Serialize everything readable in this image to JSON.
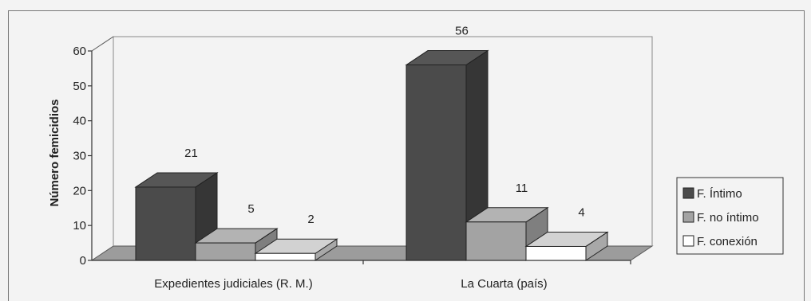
{
  "chart_data": {
    "type": "bar",
    "ylabel": "Número femicidios",
    "xlabel": "",
    "ylim": [
      0,
      60
    ],
    "yticks": [
      0,
      10,
      20,
      30,
      40,
      50,
      60
    ],
    "categories": [
      "Expedientes judiciales (R. M.)",
      "La Cuarta (país)"
    ],
    "series": [
      {
        "name": "F. Íntimo",
        "values": [
          21,
          56
        ],
        "color": "#4b4b4b"
      },
      {
        "name": "F. no íntimo",
        "values": [
          5,
          11
        ],
        "color": "#a3a3a3"
      },
      {
        "name": "F. conexión",
        "values": [
          2,
          4
        ],
        "color": "#ffffff"
      }
    ],
    "grid": false,
    "legend_position": "right",
    "style": "3d-column"
  }
}
